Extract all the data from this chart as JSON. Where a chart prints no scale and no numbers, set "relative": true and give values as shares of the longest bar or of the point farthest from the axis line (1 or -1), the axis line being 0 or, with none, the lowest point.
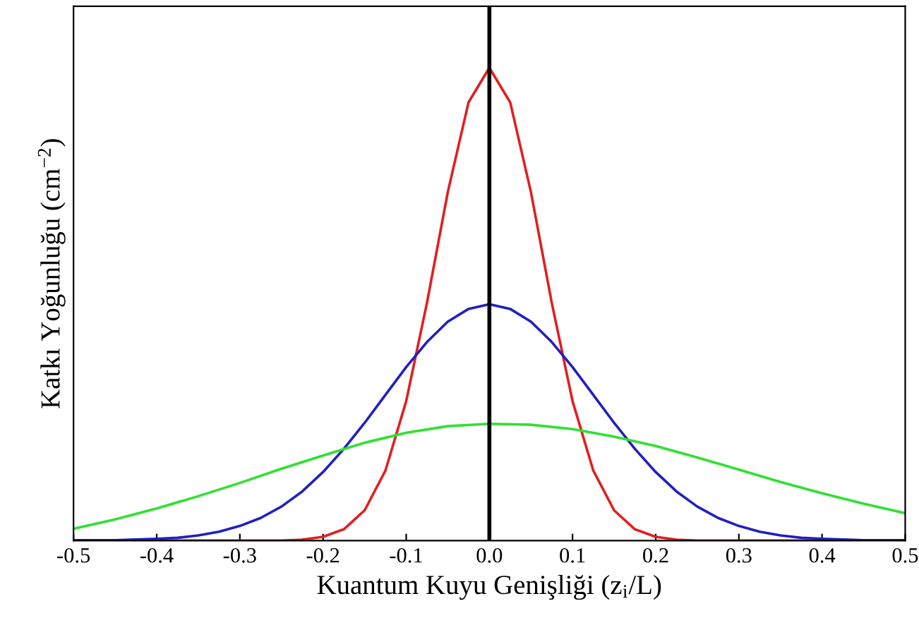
{
  "chart_data": {
    "type": "line",
    "relative": true,
    "xlabel": "Kuantum Kuyu Genişliği (z$_{i}$/L)",
    "ylabel": "Katkı Yoğunluğu (cm$^{−2}$)",
    "xlim": [
      -0.5,
      0.5
    ],
    "xticks": [
      -0.5,
      -0.4,
      -0.3,
      -0.2,
      -0.1,
      {
        "value": 0,
        "label": "0.0"
      },
      0.1,
      0.2,
      0.3,
      0.4,
      0.5
    ],
    "tick_labels": "x",
    "grid": false,
    "marker": "none",
    "line_style": "solid",
    "ref_lines": [
      {
        "axis": "x",
        "value": 0,
        "color": "#000000"
      }
    ],
    "series": [
      {
        "color": "#e02020",
        "x": [
          -0.5,
          -0.3,
          -0.25,
          -0.225,
          -0.2,
          -0.175,
          -0.15,
          -0.125,
          -0.1,
          -0.075,
          -0.05,
          -0.025,
          0,
          0.025,
          0.05,
          0.075,
          0.1,
          0.125,
          0.15,
          0.175,
          0.2,
          0.225,
          0.25,
          0.3,
          0.5
        ],
        "values": [
          0,
          0,
          0,
          0.002,
          0.008,
          0.024,
          0.064,
          0.148,
          0.295,
          0.503,
          0.737,
          0.927,
          1,
          0.927,
          0.737,
          0.503,
          0.295,
          0.148,
          0.064,
          0.024,
          0.008,
          0.002,
          0,
          0,
          0
        ]
      },
      {
        "color": "#2020c0",
        "x": [
          -0.5,
          -0.45,
          -0.4,
          -0.375,
          -0.35,
          -0.325,
          -0.3,
          -0.275,
          -0.25,
          -0.225,
          -0.2,
          -0.175,
          -0.15,
          -0.125,
          -0.1,
          -0.075,
          -0.05,
          -0.025,
          0,
          0.025,
          0.05,
          0.075,
          0.1,
          0.125,
          0.15,
          0.175,
          0.2,
          0.225,
          0.25,
          0.275,
          0.3,
          0.325,
          0.35,
          0.375,
          0.4,
          0.45,
          0.5
        ],
        "values": [
          0.001,
          0.001,
          0.004,
          0.006,
          0.011,
          0.019,
          0.031,
          0.048,
          0.072,
          0.104,
          0.145,
          0.194,
          0.249,
          0.308,
          0.367,
          0.42,
          0.463,
          0.49,
          0.5,
          0.49,
          0.463,
          0.42,
          0.367,
          0.308,
          0.249,
          0.194,
          0.145,
          0.104,
          0.072,
          0.048,
          0.031,
          0.019,
          0.011,
          0.006,
          0.004,
          0.001,
          0.001
        ]
      },
      {
        "color": "#30e030",
        "x": [
          -0.5,
          -0.45,
          -0.4,
          -0.35,
          -0.3,
          -0.25,
          -0.2,
          -0.15,
          -0.1,
          -0.05,
          0,
          0.05,
          0.1,
          0.15,
          0.2,
          0.25,
          0.3,
          0.35,
          0.4,
          0.45,
          0.5
        ],
        "values": [
          0.025,
          0.045,
          0.068,
          0.094,
          0.122,
          0.152,
          0.18,
          0.207,
          0.228,
          0.242,
          0.247,
          0.245,
          0.236,
          0.22,
          0.2,
          0.176,
          0.15,
          0.124,
          0.1,
          0.078,
          0.058
        ]
      }
    ]
  }
}
